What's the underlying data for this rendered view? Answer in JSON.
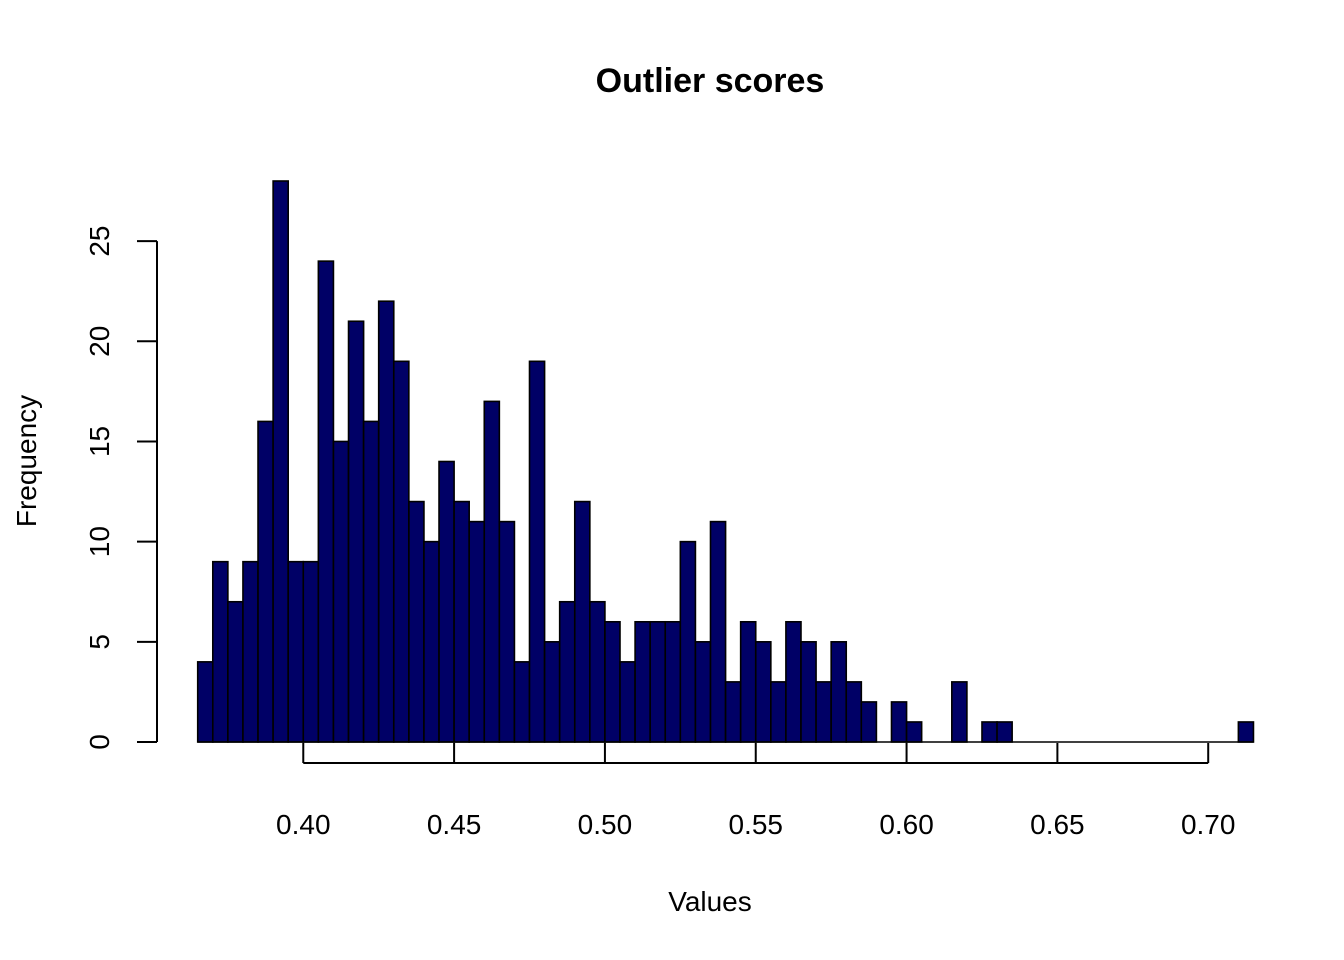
{
  "chart_data": {
    "type": "histogram",
    "title": "Outlier scores",
    "xlabel": "Values",
    "ylabel": "Frequency",
    "bar_color": "#000066",
    "bar_border_color": "#000000",
    "bin_start": 0.365,
    "bin_width": 0.005,
    "counts": [
      4,
      9,
      7,
      9,
      16,
      28,
      9,
      9,
      24,
      15,
      21,
      16,
      22,
      19,
      12,
      10,
      14,
      12,
      11,
      17,
      11,
      4,
      19,
      5,
      7,
      12,
      7,
      6,
      4,
      6,
      6,
      6,
      10,
      5,
      11,
      3,
      6,
      5,
      3,
      6,
      5,
      3,
      5,
      3,
      2,
      0,
      2,
      1,
      0,
      0,
      3,
      0,
      1,
      1,
      0,
      0,
      0,
      0,
      0,
      0,
      0,
      0,
      0,
      0,
      0,
      0,
      0,
      0,
      0,
      1
    ],
    "xlim": [
      0.3525,
      0.7175
    ],
    "ylim": [
      0,
      28
    ],
    "x_ticks": [
      0.4,
      0.45,
      0.5,
      0.55,
      0.6,
      0.65,
      0.7
    ],
    "x_tick_labels": [
      "0.40",
      "0.45",
      "0.50",
      "0.55",
      "0.60",
      "0.65",
      "0.70"
    ],
    "y_ticks": [
      0,
      5,
      10,
      15,
      20,
      25
    ],
    "y_tick_labels": [
      "0",
      "5",
      "10",
      "15",
      "20",
      "25"
    ],
    "grid": false,
    "legend": "none"
  }
}
